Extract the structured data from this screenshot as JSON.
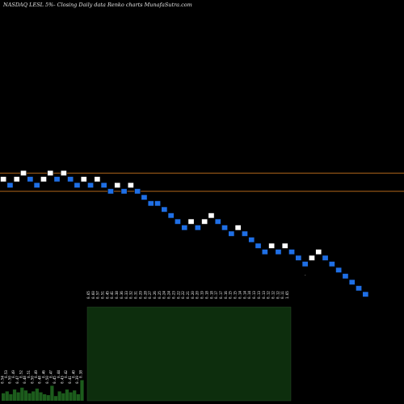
{
  "header": {
    "title": "NASDAQ LESL  5%-  Closing Daily data  Renko  charts MunafaSutra.com"
  },
  "colors": {
    "background": "#000000",
    "up_brick": "#ffffff",
    "down_brick": "#1f6fe5",
    "brick_outline": "#000000",
    "reference_line": "#b0661a",
    "volume_panel": "#0d2e0d",
    "volume_bar_bright": "#1c5c1c",
    "volume_bar_border": "#2a4a2a"
  },
  "chart_data": {
    "type": "renko",
    "title": "NASDAQ LESL  5%-  Closing Daily data  Renko  charts MunafaSutra.com",
    "brick_box_percent": 5,
    "bricks": [
      {
        "dir": "up",
        "level": 0
      },
      {
        "dir": "down",
        "level": -1
      },
      {
        "dir": "up",
        "level": 0
      },
      {
        "dir": "up",
        "level": 1
      },
      {
        "dir": "down",
        "level": 0
      },
      {
        "dir": "down",
        "level": -1
      },
      {
        "dir": "up",
        "level": 0
      },
      {
        "dir": "up",
        "level": 1
      },
      {
        "dir": "down",
        "level": 0
      },
      {
        "dir": "up",
        "level": 1
      },
      {
        "dir": "down",
        "level": 0
      },
      {
        "dir": "down",
        "level": -1
      },
      {
        "dir": "up",
        "level": 0
      },
      {
        "dir": "down",
        "level": -1
      },
      {
        "dir": "up",
        "level": 0
      },
      {
        "dir": "down",
        "level": -1
      },
      {
        "dir": "down",
        "level": -2
      },
      {
        "dir": "up",
        "level": -1
      },
      {
        "dir": "down",
        "level": -2
      },
      {
        "dir": "up",
        "level": -1
      },
      {
        "dir": "down",
        "level": -2
      },
      {
        "dir": "down",
        "level": -3
      },
      {
        "dir": "down",
        "level": -4
      },
      {
        "dir": "down",
        "level": -4
      },
      {
        "dir": "down",
        "level": -5
      },
      {
        "dir": "down",
        "level": -6
      },
      {
        "dir": "down",
        "level": -7
      },
      {
        "dir": "down",
        "level": -8
      },
      {
        "dir": "up",
        "level": -7
      },
      {
        "dir": "down",
        "level": -8
      },
      {
        "dir": "up",
        "level": -7
      },
      {
        "dir": "up",
        "level": -6
      },
      {
        "dir": "down",
        "level": -7
      },
      {
        "dir": "down",
        "level": -8
      },
      {
        "dir": "down",
        "level": -9
      },
      {
        "dir": "up",
        "level": -8
      },
      {
        "dir": "down",
        "level": -9
      },
      {
        "dir": "down",
        "level": -10
      },
      {
        "dir": "down",
        "level": -11
      },
      {
        "dir": "down",
        "level": -12
      },
      {
        "dir": "up",
        "level": -11
      },
      {
        "dir": "down",
        "level": -12
      },
      {
        "dir": "up",
        "level": -11
      },
      {
        "dir": "down",
        "level": -12
      },
      {
        "dir": "down",
        "level": -13
      },
      {
        "dir": "down",
        "level": -14
      },
      {
        "dir": "up",
        "level": -13
      },
      {
        "dir": "up",
        "level": -12
      },
      {
        "dir": "down",
        "level": -13
      },
      {
        "dir": "down",
        "level": -14
      },
      {
        "dir": "down",
        "level": -15
      },
      {
        "dir": "down",
        "level": -16
      },
      {
        "dir": "down",
        "level": -17
      },
      {
        "dir": "down",
        "level": -18
      },
      {
        "dir": "down",
        "level": -19
      }
    ],
    "reference_lines": [
      {
        "level": 0.5
      },
      {
        "level": -2.5
      }
    ],
    "small_marker": {
      "brick_index": 45,
      "level": -16.5,
      "glyph": "-"
    },
    "price_labels": [
      "0.65",
      "0.60",
      "0.57",
      "0.51",
      "0.45",
      "0.41",
      "0.38",
      "0.36",
      "0.33",
      "0.32",
      "0.31",
      "0.29",
      "0.28",
      "0.27",
      "0.26",
      "0.25",
      "0.24",
      "0.24",
      "0.23",
      "0.22",
      "0.22",
      "0.21",
      "0.20",
      "0.20",
      "0.19",
      "0.18",
      "0.18",
      "0.17",
      "0.17",
      "0.16",
      "0.15",
      "0.15",
      "0.14",
      "0.14",
      "0.14",
      "0.13",
      "0.13",
      "0.13",
      "0.12",
      "0.12",
      "0.12",
      "0.11",
      "1.65"
    ],
    "left_volume_labels": [
      "0.54",
      "0.53",
      "0.50",
      "0.49",
      "0.47",
      "0.52",
      "0.48",
      "0.51",
      "0.50",
      "0.49",
      "0.48",
      "0.46",
      "0.50",
      "0.47",
      "0.45",
      "0.44",
      "0.43",
      "0.42",
      "0.41",
      "0.40",
      "0.39",
      "0.38"
    ],
    "left_volume_values": [
      8,
      10,
      7,
      12,
      9,
      14,
      11,
      8,
      10,
      13,
      9,
      7,
      6,
      16,
      5,
      10,
      8,
      12,
      9,
      11,
      7,
      22
    ],
    "main_volume_value": 100
  }
}
